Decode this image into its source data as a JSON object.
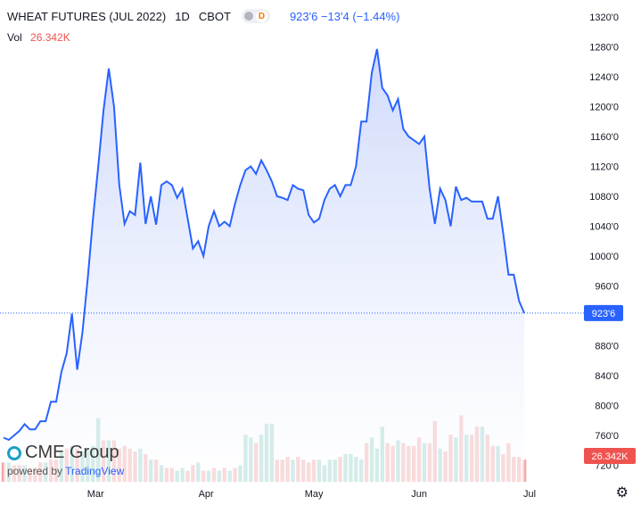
{
  "header": {
    "symbol": "WHEAT FUTURES (JUL 2022)",
    "interval": "1D",
    "exchange": "CBOT",
    "badge_letter": "D",
    "quote": "923'6  −13'4 (−1.44%)",
    "vol_label": "Vol",
    "vol_value": "26.342K"
  },
  "branding": {
    "company": "CME Group",
    "powered_by": "powered by",
    "platform": "TradingView"
  },
  "chart_data": {
    "type": "area",
    "title": "WHEAT FUTURES (JUL 2022)",
    "xlabel": "",
    "ylabel": "",
    "ylim": [
      708,
      1330
    ],
    "y_ticks": [
      "1320'0",
      "1280'0",
      "1240'0",
      "1200'0",
      "1160'0",
      "1120'0",
      "1080'0",
      "1040'0",
      "1000'0",
      "960'0",
      "880'0",
      "840'0",
      "800'0",
      "760'0",
      "720'0"
    ],
    "y_tick_values": [
      1320,
      1280,
      1240,
      1200,
      1160,
      1120,
      1080,
      1040,
      1000,
      960,
      880,
      840,
      800,
      760,
      720
    ],
    "x_ticks": [
      "Mar",
      "Apr",
      "May",
      "Jun",
      "Jul"
    ],
    "x_tick_index": [
      17.5,
      38.5,
      59,
      79,
      100
    ],
    "last_price_label": "923'6",
    "last_price": 923.75,
    "volume_label": "26.342K",
    "price": [
      757,
      754,
      760,
      766,
      775,
      768,
      768,
      779,
      779,
      805,
      805,
      845,
      870,
      923,
      848,
      898,
      970,
      1050,
      1120,
      1195,
      1251,
      1200,
      1095,
      1043,
      1060,
      1055,
      1125,
      1043,
      1080,
      1042,
      1095,
      1100,
      1095,
      1078,
      1090,
      1050,
      1010,
      1020,
      1000,
      1040,
      1060,
      1040,
      1046,
      1040,
      1070,
      1095,
      1115,
      1120,
      1110,
      1128,
      1115,
      1100,
      1080,
      1078,
      1075,
      1095,
      1090,
      1088,
      1055,
      1045,
      1050,
      1075,
      1090,
      1095,
      1080,
      1095,
      1095,
      1120,
      1180,
      1180,
      1245,
      1277,
      1225,
      1215,
      1195,
      1210,
      1170,
      1160,
      1155,
      1150,
      1160,
      1090,
      1043,
      1090,
      1075,
      1040,
      1093,
      1075,
      1078,
      1073,
      1073,
      1073,
      1050,
      1050,
      1080,
      1030,
      975,
      975,
      940,
      923.75
    ],
    "volume": [
      7,
      7,
      6,
      6,
      6,
      5,
      5,
      7,
      7,
      8,
      8,
      11,
      12,
      13,
      12,
      11,
      12,
      13,
      23,
      15,
      15,
      15,
      12,
      13,
      12,
      11,
      12,
      10,
      8,
      8,
      6,
      5,
      5,
      4,
      5,
      4,
      6,
      7,
      4,
      4,
      5,
      4,
      5,
      4,
      5,
      6,
      17,
      16,
      14,
      17,
      21,
      21,
      8,
      8,
      9,
      8,
      9,
      8,
      7,
      8,
      8,
      6,
      8,
      8,
      9,
      10,
      10,
      9,
      8,
      14,
      16,
      12,
      20,
      14,
      13,
      15,
      14,
      13,
      13,
      16,
      14,
      14,
      22,
      12,
      11,
      17,
      16,
      24,
      17,
      17,
      20,
      20,
      17,
      13,
      13,
      10,
      14,
      9,
      9,
      8
    ],
    "volume_dir": [
      "d",
      "g",
      "d",
      "d",
      "g",
      "d",
      "d",
      "d",
      "g",
      "d",
      "d",
      "g",
      "d",
      "g",
      "d",
      "g",
      "g",
      "g",
      "g",
      "d",
      "g",
      "d",
      "d",
      "d",
      "d",
      "d",
      "g",
      "d",
      "g",
      "d",
      "g",
      "d",
      "d",
      "g",
      "g",
      "d",
      "d",
      "g",
      "d",
      "g",
      "d",
      "g",
      "d",
      "g",
      "d",
      "g",
      "g",
      "g",
      "d",
      "g",
      "g",
      "g",
      "d",
      "d",
      "d",
      "g",
      "d",
      "d",
      "d",
      "d",
      "g",
      "g",
      "g",
      "g",
      "d",
      "g",
      "g",
      "g",
      "g",
      "d",
      "g",
      "g",
      "g",
      "d",
      "d",
      "g",
      "d",
      "d",
      "d",
      "d",
      "g",
      "d",
      "d",
      "g",
      "d",
      "d",
      "g",
      "d",
      "g",
      "d",
      "d",
      "g",
      "d",
      "d",
      "g",
      "d",
      "d",
      "d",
      "d",
      "d"
    ],
    "colors": {
      "line": "#2962ff",
      "area_top": "#cdd8fb",
      "area_bottom": "#ffffff",
      "volume_up": "#92d1c8",
      "volume_down": "#f1a5a5",
      "price_label_bg": "#2962ff",
      "volume_label_bg": "#ef5350"
    }
  }
}
